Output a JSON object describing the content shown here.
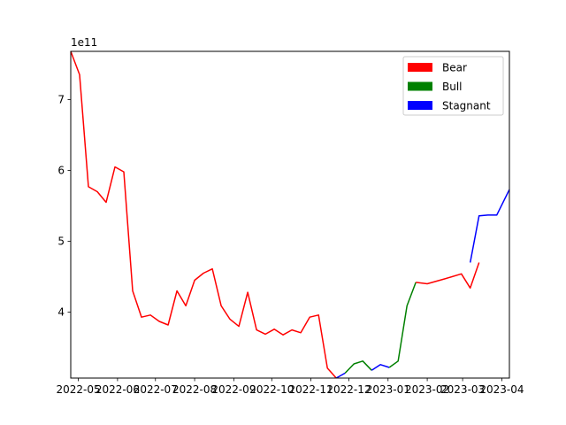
{
  "chart_data": {
    "type": "line",
    "title": "",
    "xlabel": "",
    "ylabel": "",
    "offset_label": "1e11",
    "ylim": [
      3.07,
      7.68
    ],
    "xlim": [
      "2022-04-25",
      "2023-04-07"
    ],
    "y_ticks": [
      4,
      5,
      6,
      7
    ],
    "x_ticks": [
      {
        "date": "2022-05-01",
        "label": "2022-05"
      },
      {
        "date": "2022-06-01",
        "label": "2022-06"
      },
      {
        "date": "2022-07-01",
        "label": "2022-07"
      },
      {
        "date": "2022-08-01",
        "label": "2022-08"
      },
      {
        "date": "2022-09-01",
        "label": "2022-09"
      },
      {
        "date": "2022-10-01",
        "label": "2022-10"
      },
      {
        "date": "2022-11-01",
        "label": "2022-11"
      },
      {
        "date": "2022-12-01",
        "label": "2022-12"
      },
      {
        "date": "2023-01-01",
        "label": "2023-01"
      },
      {
        "date": "2023-02-01",
        "label": "2023-02"
      },
      {
        "date": "2023-03-01",
        "label": "2023-03"
      },
      {
        "date": "2023-04-01",
        "label": "2023-04"
      }
    ],
    "grid": false,
    "legend_position": "top-right",
    "series": [
      {
        "name": "Bear",
        "color": "#ff0000",
        "points": [
          {
            "x": "2022-04-25",
            "y": 7.68
          },
          {
            "x": "2022-05-02",
            "y": 7.35
          },
          {
            "x": "2022-05-09",
            "y": 5.77
          },
          {
            "x": "2022-05-16",
            "y": 5.7
          },
          {
            "x": "2022-05-23",
            "y": 5.55
          },
          {
            "x": "2022-05-30",
            "y": 6.05
          },
          {
            "x": "2022-06-06",
            "y": 5.98
          },
          {
            "x": "2022-06-13",
            "y": 4.3
          },
          {
            "x": "2022-06-20",
            "y": 3.93
          },
          {
            "x": "2022-06-27",
            "y": 3.96
          },
          {
            "x": "2022-07-04",
            "y": 3.87
          },
          {
            "x": "2022-07-11",
            "y": 3.82
          },
          {
            "x": "2022-07-18",
            "y": 4.3
          },
          {
            "x": "2022-07-25",
            "y": 4.09
          },
          {
            "x": "2022-08-01",
            "y": 4.45
          },
          {
            "x": "2022-08-08",
            "y": 4.55
          },
          {
            "x": "2022-08-15",
            "y": 4.61
          },
          {
            "x": "2022-08-22",
            "y": 4.09
          },
          {
            "x": "2022-08-29",
            "y": 3.9
          },
          {
            "x": "2022-09-05",
            "y": 3.8
          },
          {
            "x": "2022-09-12",
            "y": 4.28
          },
          {
            "x": "2022-09-19",
            "y": 3.75
          },
          {
            "x": "2022-09-26",
            "y": 3.69
          },
          {
            "x": "2022-10-03",
            "y": 3.76
          },
          {
            "x": "2022-10-10",
            "y": 3.68
          },
          {
            "x": "2022-10-17",
            "y": 3.75
          },
          {
            "x": "2022-10-24",
            "y": 3.71
          },
          {
            "x": "2022-10-31",
            "y": 3.93
          },
          {
            "x": "2022-11-07",
            "y": 3.96
          },
          {
            "x": "2022-11-14",
            "y": 3.21
          },
          {
            "x": "2022-11-21",
            "y": 3.07
          }
        ]
      },
      {
        "name": "Bull",
        "color": "#008000",
        "points": [
          {
            "x": "2022-11-28",
            "y": 3.14
          },
          {
            "x": "2022-12-05",
            "y": 3.27
          },
          {
            "x": "2022-12-12",
            "y": 3.31
          },
          {
            "x": "2022-12-19",
            "y": 3.18
          },
          {
            "x": "2022-12-26",
            "y": 3.26
          },
          {
            "x": "2023-01-02",
            "y": 3.22
          },
          {
            "x": "2023-01-09",
            "y": 3.31
          },
          {
            "x": "2023-01-16",
            "y": 4.09
          },
          {
            "x": "2023-01-23",
            "y": 4.42
          }
        ]
      },
      {
        "name": "Stagnant",
        "color": "#0000ff",
        "points": [
          {
            "x": "2022-11-21",
            "y": 3.07
          },
          {
            "x": "2022-11-28",
            "y": 3.14
          },
          {
            "x": "2022-12-19",
            "y": 3.18
          },
          {
            "x": "2022-12-26",
            "y": 3.26
          },
          {
            "x": "2023-01-02",
            "y": 3.22
          },
          {
            "x": "2023-03-07",
            "y": 4.7
          },
          {
            "x": "2023-03-14",
            "y": 5.36
          },
          {
            "x": "2023-03-21",
            "y": 5.37
          },
          {
            "x": "2023-03-28",
            "y": 5.37
          },
          {
            "x": "2023-04-07",
            "y": 5.73
          }
        ]
      }
    ],
    "segments": [
      {
        "series": "Bear",
        "from": 0,
        "to": 30
      },
      {
        "series": "Stagnant",
        "points": [
          0,
          1
        ]
      },
      {
        "series": "Bull",
        "points": [
          0,
          1,
          2,
          3
        ]
      },
      {
        "series": "Stagnant",
        "points": [
          2,
          3,
          4
        ]
      },
      {
        "series": "Bull",
        "points": [
          5,
          6,
          7,
          8
        ]
      },
      {
        "series": "Bear",
        "extra": [
          {
            "x": "2023-01-23",
            "y": 4.42
          },
          {
            "x": "2023-02-01",
            "y": 4.4
          },
          {
            "x": "2023-02-15",
            "y": 4.47
          },
          {
            "x": "2023-02-28",
            "y": 4.54
          },
          {
            "x": "2023-03-07",
            "y": 4.34
          },
          {
            "x": "2023-03-14",
            "y": 4.7
          }
        ]
      },
      {
        "series": "Stagnant",
        "points": [
          5,
          6,
          7,
          8,
          9
        ]
      }
    ]
  }
}
